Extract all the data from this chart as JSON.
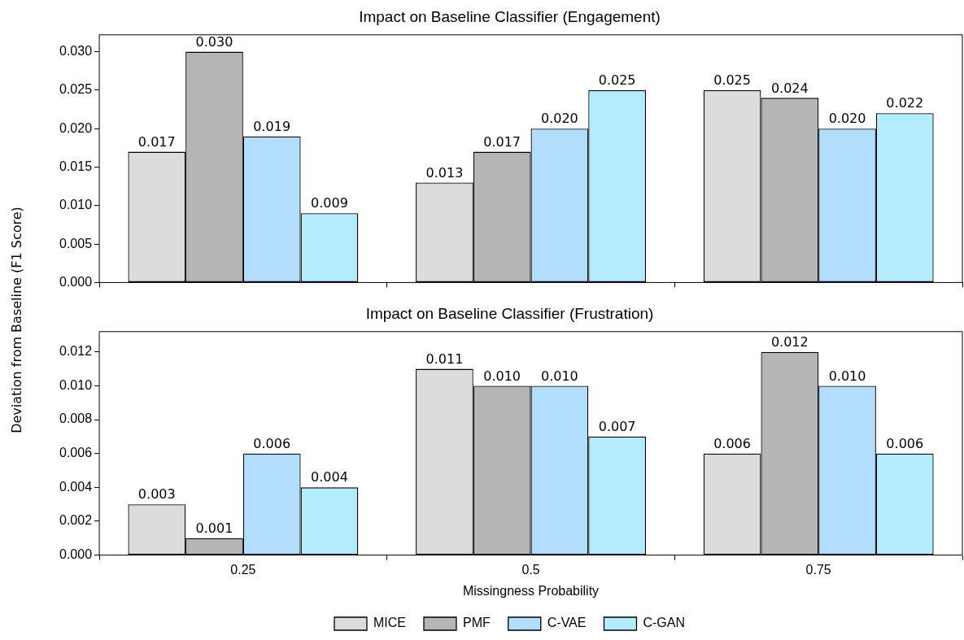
{
  "chart_data": [
    {
      "type": "bar",
      "title": "Impact on Baseline Classifier (Engagement)",
      "ylabel": "Deviation from Baseline (F1 Score)",
      "categories": [
        "0.25",
        "0.5",
        "0.75"
      ],
      "ylim": [
        0,
        0.0322
      ],
      "yticks": [
        {
          "value": 0,
          "label": "0.000"
        },
        {
          "value": 0.005,
          "label": "0.005"
        },
        {
          "value": 0.01,
          "label": "0.010"
        },
        {
          "value": 0.015,
          "label": "0.015"
        },
        {
          "value": 0.02,
          "label": "0.020"
        },
        {
          "value": 0.025,
          "label": "0.025"
        },
        {
          "value": 0.03,
          "label": "0.030"
        }
      ],
      "tick_labels": "y",
      "grid": false,
      "legend": false,
      "series": [
        {
          "color": "#dcdcdc",
          "values": [
            0.017,
            0.013,
            0.025
          ],
          "value_labels": [
            "0.017",
            "0.013",
            "0.025"
          ]
        },
        {
          "color": "#b5b5b5",
          "values": [
            0.03,
            0.017,
            0.024
          ],
          "value_labels": [
            "0.030",
            "0.017",
            "0.024"
          ]
        },
        {
          "color": "#b3ddfd",
          "values": [
            0.019,
            0.02,
            0.02
          ],
          "value_labels": [
            "0.019",
            "0.020",
            "0.020"
          ]
        },
        {
          "color": "#b3ecfd",
          "values": [
            0.009,
            0.025,
            0.022
          ],
          "value_labels": [
            "0.009",
            "0.025",
            "0.022"
          ]
        }
      ]
    },
    {
      "type": "bar",
      "title": "Impact on Baseline Classifier (Frustration)",
      "xlabel": "Missingness Probability",
      "categories": [
        "0.25",
        "0.5",
        "0.75"
      ],
      "ylim": [
        0,
        0.0132
      ],
      "yticks": [
        {
          "value": 0,
          "label": "0.000"
        },
        {
          "value": 0.002,
          "label": "0.002"
        },
        {
          "value": 0.004,
          "label": "0.004"
        },
        {
          "value": 0.006,
          "label": "0.006"
        },
        {
          "value": 0.008,
          "label": "0.008"
        },
        {
          "value": 0.01,
          "label": "0.010"
        },
        {
          "value": 0.012,
          "label": "0.012"
        }
      ],
      "grid": false,
      "legend": "bottom",
      "series": [
        {
          "name": "MICE",
          "color": "#dcdcdc",
          "values": [
            0.003,
            0.011,
            0.006
          ],
          "value_labels": [
            "0.003",
            "0.011",
            "0.006"
          ]
        },
        {
          "name": "PMF",
          "color": "#b5b5b5",
          "values": [
            0.001,
            0.01,
            0.012
          ],
          "value_labels": [
            "0.001",
            "0.010",
            "0.012"
          ]
        },
        {
          "name": "C-VAE",
          "color": "#b3ddfd",
          "values": [
            0.006,
            0.01,
            0.01
          ],
          "value_labels": [
            "0.006",
            "0.010",
            "0.010"
          ]
        },
        {
          "name": "C-GAN",
          "color": "#b3ecfd",
          "values": [
            0.004,
            0.007,
            0.006
          ],
          "value_labels": [
            "0.004",
            "0.007",
            "0.006"
          ]
        }
      ]
    }
  ]
}
